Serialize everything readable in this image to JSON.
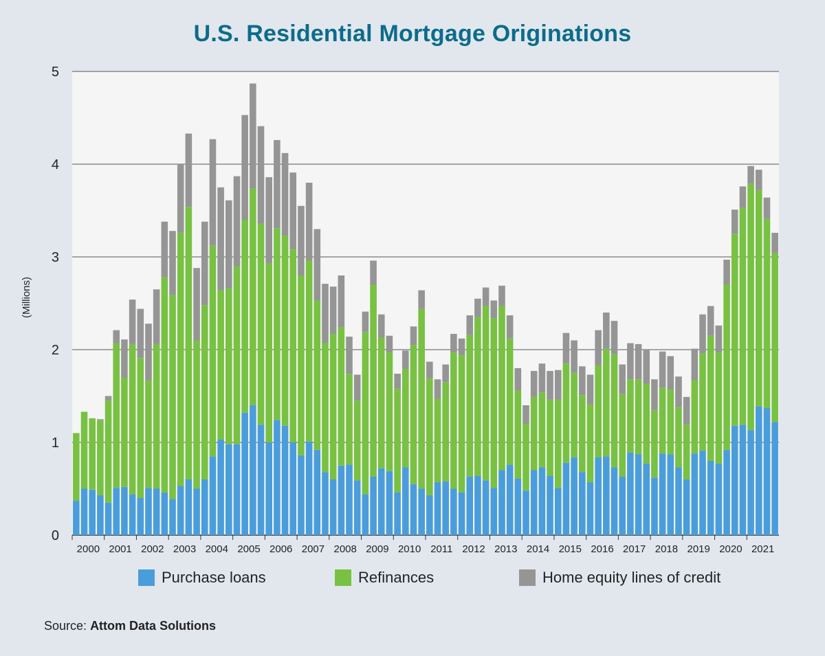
{
  "title": "U.S. Residential Mortgage Originations",
  "source_label": "Source:",
  "source_name": "Attom Data Solutions",
  "colors": {
    "purchase": "#4a9ddb",
    "refi": "#78c142",
    "heloc": "#959595",
    "background": "#e2e7ee",
    "plot_background": "#f5f5f5",
    "title": "#0b6c8c"
  },
  "legend": [
    {
      "label": "Purchase loans",
      "color": "#4a9ddb"
    },
    {
      "label": "Refinances",
      "color": "#78c142"
    },
    {
      "label": "Home equity lines of credit",
      "color": "#959595"
    }
  ],
  "chart_data": {
    "type": "bar",
    "stacked": true,
    "title": "U.S. Residential Mortgage Originations",
    "ylabel": "(Millions)",
    "xlabel": "",
    "ylim": [
      0,
      5
    ],
    "yticks": [
      0,
      1,
      2,
      3,
      4,
      5
    ],
    "grid": true,
    "legend_position": "bottom",
    "year_labels": [
      "2000",
      "2001",
      "2002",
      "2003",
      "2004",
      "2005",
      "2006",
      "2007",
      "2008",
      "2009",
      "2010",
      "2011",
      "2012",
      "2013",
      "2014",
      "2015",
      "2016",
      "2017",
      "2018",
      "2019",
      "2020",
      "2021"
    ],
    "quarters_per_year": 4,
    "series": [
      {
        "name": "Purchase loans",
        "values": [
          0.37,
          0.5,
          0.49,
          0.43,
          0.35,
          0.51,
          0.52,
          0.44,
          0.4,
          0.51,
          0.5,
          0.46,
          0.39,
          0.53,
          0.6,
          0.5,
          0.6,
          0.85,
          1.03,
          0.98,
          0.98,
          1.32,
          1.4,
          1.19,
          1.0,
          1.24,
          1.18,
          1.0,
          0.86,
          1.01,
          0.92,
          0.68,
          0.6,
          0.75,
          0.76,
          0.59,
          0.44,
          0.63,
          0.72,
          0.69,
          0.46,
          0.73,
          0.55,
          0.5,
          0.43,
          0.57,
          0.58,
          0.5,
          0.46,
          0.63,
          0.64,
          0.59,
          0.51,
          0.7,
          0.76,
          0.61,
          0.48,
          0.7,
          0.73,
          0.64,
          0.51,
          0.78,
          0.84,
          0.68,
          0.57,
          0.84,
          0.85,
          0.73,
          0.63,
          0.89,
          0.87,
          0.77,
          0.62,
          0.88,
          0.87,
          0.73,
          0.6,
          0.88,
          0.91,
          0.8,
          0.77,
          0.92,
          1.18,
          1.19,
          1.13,
          1.39,
          1.37,
          1.22
        ]
      },
      {
        "name": "Refinances",
        "values": [
          0.73,
          0.83,
          0.77,
          0.81,
          1.1,
          1.56,
          1.18,
          1.62,
          1.51,
          1.16,
          1.56,
          2.32,
          2.2,
          2.73,
          2.94,
          1.6,
          1.88,
          2.27,
          1.61,
          1.68,
          1.92,
          2.08,
          2.34,
          2.17,
          1.93,
          2.07,
          2.05,
          2.08,
          1.94,
          1.95,
          1.61,
          1.39,
          1.57,
          1.49,
          0.98,
          0.86,
          1.75,
          2.07,
          1.41,
          1.28,
          1.12,
          1.06,
          1.5,
          1.94,
          1.26,
          0.9,
          1.07,
          1.47,
          1.48,
          1.53,
          1.71,
          1.88,
          1.83,
          1.77,
          1.36,
          0.95,
          0.72,
          0.79,
          0.81,
          0.82,
          0.95,
          1.07,
          0.91,
          0.83,
          0.84,
          0.99,
          1.16,
          1.22,
          0.89,
          0.79,
          0.81,
          0.86,
          0.73,
          0.71,
          0.7,
          0.65,
          0.59,
          0.79,
          1.05,
          1.35,
          1.2,
          1.78,
          2.07,
          2.34,
          2.66,
          2.33,
          2.04,
          1.82
        ]
      },
      {
        "name": "Home equity lines of credit",
        "values": [
          0.0,
          0.0,
          0.0,
          0.01,
          0.05,
          0.14,
          0.41,
          0.48,
          0.53,
          0.61,
          0.59,
          0.6,
          0.69,
          0.74,
          0.79,
          0.78,
          0.9,
          1.15,
          1.11,
          0.95,
          0.97,
          1.13,
          1.13,
          1.05,
          0.93,
          0.95,
          0.89,
          0.83,
          0.75,
          0.84,
          0.77,
          0.64,
          0.51,
          0.56,
          0.4,
          0.28,
          0.22,
          0.26,
          0.25,
          0.18,
          0.16,
          0.2,
          0.2,
          0.2,
          0.18,
          0.21,
          0.19,
          0.2,
          0.18,
          0.21,
          0.2,
          0.2,
          0.19,
          0.22,
          0.25,
          0.24,
          0.2,
          0.28,
          0.31,
          0.31,
          0.32,
          0.33,
          0.35,
          0.31,
          0.32,
          0.38,
          0.39,
          0.36,
          0.32,
          0.39,
          0.38,
          0.37,
          0.33,
          0.39,
          0.36,
          0.33,
          0.3,
          0.34,
          0.42,
          0.32,
          0.29,
          0.27,
          0.26,
          0.23,
          0.19,
          0.22,
          0.23,
          0.22
        ]
      }
    ]
  }
}
